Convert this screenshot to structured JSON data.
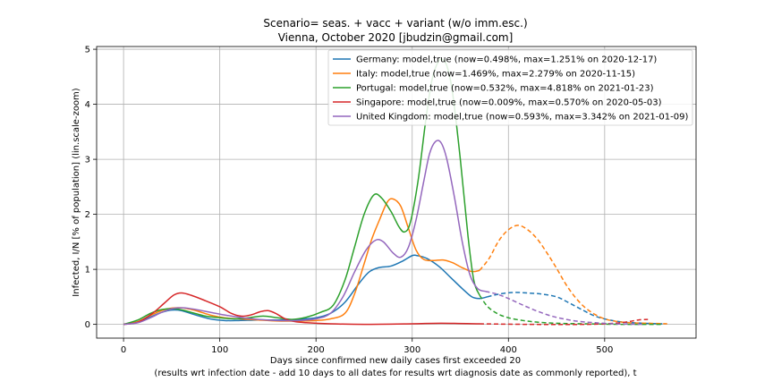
{
  "chart_data": {
    "type": "line",
    "title": "Scenario= seas. + vacc + variant (w/o imm.esc.)",
    "subtitle": "Vienna, October 2020 [jbudzin@gmail.com]",
    "xlabel": "Days since confirmed new daily cases first exceeded 20",
    "xlabel2": "(results wrt infection date - add 10 days to all dates for results wrt diagnosis date as commonly reported), t",
    "ylabel": "Infected, I/N [% of population] (lin.scale-zoom)",
    "xlim": [
      -28,
      595
    ],
    "ylim": [
      -0.25,
      5.05
    ],
    "xticks": [
      0,
      100,
      200,
      300,
      400,
      500
    ],
    "yticks": [
      0,
      1,
      2,
      3,
      4,
      5
    ],
    "grid": true,
    "legend_position": "top-right",
    "series": [
      {
        "name": "Germany: model,true (now=0.498%, max=1.251% on 2020-12-17)",
        "color": "#1f77b4",
        "solid": [
          [
            0,
            0
          ],
          [
            15,
            0.05
          ],
          [
            30,
            0.15
          ],
          [
            40,
            0.22
          ],
          [
            50,
            0.26
          ],
          [
            60,
            0.25
          ],
          [
            75,
            0.17
          ],
          [
            90,
            0.1
          ],
          [
            105,
            0.07
          ],
          [
            120,
            0.07
          ],
          [
            140,
            0.08
          ],
          [
            160,
            0.08
          ],
          [
            180,
            0.09
          ],
          [
            200,
            0.12
          ],
          [
            215,
            0.2
          ],
          [
            230,
            0.4
          ],
          [
            245,
            0.75
          ],
          [
            255,
            0.95
          ],
          [
            265,
            1.03
          ],
          [
            278,
            1.06
          ],
          [
            290,
            1.15
          ],
          [
            300,
            1.25
          ],
          [
            305,
            1.25
          ],
          [
            315,
            1.2
          ],
          [
            328,
            1.05
          ],
          [
            340,
            0.85
          ],
          [
            352,
            0.65
          ],
          [
            362,
            0.5
          ],
          [
            370,
            0.47
          ],
          [
            378,
            0.5
          ]
        ],
        "dashed": [
          [
            378,
            0.5
          ],
          [
            390,
            0.55
          ],
          [
            405,
            0.58
          ],
          [
            420,
            0.57
          ],
          [
            435,
            0.55
          ],
          [
            450,
            0.5
          ],
          [
            462,
            0.4
          ],
          [
            475,
            0.28
          ],
          [
            490,
            0.15
          ],
          [
            505,
            0.08
          ],
          [
            520,
            0.04
          ],
          [
            540,
            0.02
          ],
          [
            560,
            0.01
          ]
        ]
      },
      {
        "name": "Italy: model,true (now=1.469%, max=2.279% on 2020-11-15)",
        "color": "#ff7f0e",
        "solid": [
          [
            0,
            0
          ],
          [
            15,
            0.05
          ],
          [
            30,
            0.18
          ],
          [
            45,
            0.28
          ],
          [
            60,
            0.3
          ],
          [
            75,
            0.25
          ],
          [
            90,
            0.17
          ],
          [
            105,
            0.12
          ],
          [
            120,
            0.1
          ],
          [
            140,
            0.08
          ],
          [
            160,
            0.06
          ],
          [
            180,
            0.06
          ],
          [
            200,
            0.07
          ],
          [
            215,
            0.1
          ],
          [
            230,
            0.2
          ],
          [
            240,
            0.55
          ],
          [
            250,
            1.1
          ],
          [
            258,
            1.55
          ],
          [
            266,
            1.9
          ],
          [
            274,
            2.22
          ],
          [
            280,
            2.28
          ],
          [
            288,
            2.15
          ],
          [
            296,
            1.75
          ],
          [
            304,
            1.35
          ],
          [
            312,
            1.18
          ],
          [
            322,
            1.16
          ],
          [
            332,
            1.17
          ],
          [
            342,
            1.12
          ],
          [
            352,
            1.03
          ],
          [
            362,
            0.96
          ],
          [
            370,
            0.98
          ]
        ],
        "dashed": [
          [
            370,
            0.98
          ],
          [
            380,
            1.2
          ],
          [
            390,
            1.52
          ],
          [
            400,
            1.72
          ],
          [
            410,
            1.8
          ],
          [
            420,
            1.72
          ],
          [
            430,
            1.55
          ],
          [
            440,
            1.3
          ],
          [
            450,
            1.02
          ],
          [
            460,
            0.72
          ],
          [
            470,
            0.48
          ],
          [
            480,
            0.3
          ],
          [
            490,
            0.18
          ],
          [
            500,
            0.1
          ],
          [
            510,
            0.06
          ],
          [
            525,
            0.03
          ],
          [
            545,
            0.02
          ],
          [
            565,
            0.01
          ]
        ]
      },
      {
        "name": "Portugal: model,true (now=0.532%, max=4.818% on 2021-01-23)",
        "color": "#2ca02c",
        "solid": [
          [
            0,
            0
          ],
          [
            15,
            0.08
          ],
          [
            28,
            0.2
          ],
          [
            40,
            0.27
          ],
          [
            55,
            0.28
          ],
          [
            70,
            0.22
          ],
          [
            85,
            0.15
          ],
          [
            100,
            0.12
          ],
          [
            115,
            0.1
          ],
          [
            130,
            0.12
          ],
          [
            145,
            0.15
          ],
          [
            160,
            0.12
          ],
          [
            175,
            0.09
          ],
          [
            190,
            0.13
          ],
          [
            205,
            0.22
          ],
          [
            218,
            0.35
          ],
          [
            230,
            0.8
          ],
          [
            240,
            1.4
          ],
          [
            250,
            2.0
          ],
          [
            260,
            2.35
          ],
          [
            268,
            2.3
          ],
          [
            278,
            2.05
          ],
          [
            286,
            1.78
          ],
          [
            292,
            1.68
          ],
          [
            298,
            1.85
          ],
          [
            306,
            2.6
          ],
          [
            314,
            3.7
          ],
          [
            320,
            4.4
          ],
          [
            325,
            4.7
          ],
          [
            330,
            4.82
          ],
          [
            336,
            4.7
          ],
          [
            342,
            4.2
          ],
          [
            350,
            3.0
          ],
          [
            358,
            1.6
          ],
          [
            364,
            0.8
          ],
          [
            370,
            0.53
          ]
        ],
        "dashed": [
          [
            370,
            0.53
          ],
          [
            378,
            0.33
          ],
          [
            388,
            0.2
          ],
          [
            400,
            0.12
          ],
          [
            415,
            0.07
          ],
          [
            430,
            0.04
          ],
          [
            450,
            0.02
          ],
          [
            480,
            0.01
          ],
          [
            520,
            0.0
          ],
          [
            560,
            0.0
          ]
        ]
      },
      {
        "name": "Singapore: model,true (now=0.009%, max=0.570% on 2020-05-03)",
        "color": "#d62728",
        "solid": [
          [
            0,
            0
          ],
          [
            15,
            0.04
          ],
          [
            30,
            0.2
          ],
          [
            42,
            0.38
          ],
          [
            52,
            0.53
          ],
          [
            60,
            0.57
          ],
          [
            70,
            0.53
          ],
          [
            85,
            0.43
          ],
          [
            100,
            0.32
          ],
          [
            112,
            0.2
          ],
          [
            122,
            0.15
          ],
          [
            132,
            0.17
          ],
          [
            142,
            0.23
          ],
          [
            150,
            0.25
          ],
          [
            158,
            0.2
          ],
          [
            168,
            0.1
          ],
          [
            178,
            0.05
          ],
          [
            190,
            0.03
          ],
          [
            215,
            0.01
          ],
          [
            250,
            0.0
          ],
          [
            300,
            0.01
          ],
          [
            330,
            0.02
          ],
          [
            370,
            0.01
          ]
        ],
        "dashed": [
          [
            370,
            0.01
          ],
          [
            420,
            0.0
          ],
          [
            480,
            0.0
          ],
          [
            510,
            0.02
          ],
          [
            525,
            0.05
          ],
          [
            535,
            0.08
          ],
          [
            545,
            0.09
          ]
        ]
      },
      {
        "name": "United Kingdom: model,true (now=0.593%, max=3.342% on 2021-01-09)",
        "color": "#9467bd",
        "solid": [
          [
            0,
            0
          ],
          [
            15,
            0.03
          ],
          [
            28,
            0.12
          ],
          [
            40,
            0.22
          ],
          [
            52,
            0.29
          ],
          [
            62,
            0.3
          ],
          [
            75,
            0.27
          ],
          [
            90,
            0.22
          ],
          [
            105,
            0.17
          ],
          [
            120,
            0.13
          ],
          [
            140,
            0.09
          ],
          [
            160,
            0.07
          ],
          [
            180,
            0.07
          ],
          [
            200,
            0.1
          ],
          [
            215,
            0.2
          ],
          [
            228,
            0.5
          ],
          [
            240,
            0.95
          ],
          [
            252,
            1.35
          ],
          [
            262,
            1.53
          ],
          [
            270,
            1.5
          ],
          [
            280,
            1.3
          ],
          [
            288,
            1.22
          ],
          [
            296,
            1.4
          ],
          [
            304,
            1.9
          ],
          [
            312,
            2.6
          ],
          [
            318,
            3.1
          ],
          [
            324,
            3.32
          ],
          [
            330,
            3.3
          ],
          [
            336,
            3.0
          ],
          [
            344,
            2.3
          ],
          [
            352,
            1.5
          ],
          [
            360,
            0.9
          ],
          [
            368,
            0.65
          ],
          [
            376,
            0.6
          ]
        ],
        "dashed": [
          [
            376,
            0.6
          ],
          [
            388,
            0.55
          ],
          [
            400,
            0.47
          ],
          [
            415,
            0.35
          ],
          [
            430,
            0.24
          ],
          [
            445,
            0.15
          ],
          [
            460,
            0.09
          ],
          [
            475,
            0.05
          ],
          [
            490,
            0.03
          ],
          [
            510,
            0.01
          ],
          [
            540,
            0.0
          ]
        ]
      }
    ]
  }
}
